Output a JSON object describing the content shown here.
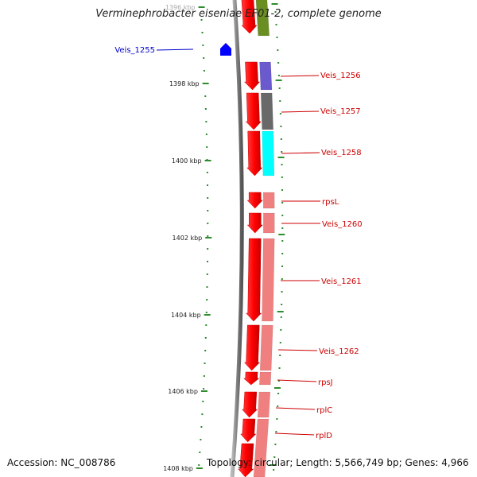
{
  "title": "Verminephrobacter eiseniae EF01-2, complete genome",
  "footer": {
    "accession": "Accession: NC_008786",
    "topology": "Topology: circular; Length: 5,566,749 bp; Genes: 4,966"
  },
  "colors": {
    "forward_gene": "#ff0000",
    "forward_gene_light": "#f08080",
    "reverse_gene": "#0000ff",
    "backbone": "#808080",
    "tick": "#2e8b2e",
    "label_red": "#cc0000",
    "label_blue": "#0000cc"
  },
  "scale_labels": [
    "1396 kbp",
    "1398 kbp",
    "1400 kbp",
    "1402 kbp",
    "1404 kbp",
    "1406 kbp",
    "1408 kbp"
  ],
  "gene_labels": [
    {
      "text": "Veis_1255",
      "strand": "reverse"
    },
    {
      "text": "Veis_1256",
      "strand": "forward"
    },
    {
      "text": "Veis_1257",
      "strand": "forward"
    },
    {
      "text": "Veis_1258",
      "strand": "forward"
    },
    {
      "text": "rpsL",
      "strand": "forward"
    },
    {
      "text": "Veis_1260",
      "strand": "forward"
    },
    {
      "text": "Veis_1261",
      "strand": "forward"
    },
    {
      "text": "Veis_1262",
      "strand": "forward"
    },
    {
      "text": "rpsJ",
      "strand": "forward"
    },
    {
      "text": "rplC",
      "strand": "forward"
    },
    {
      "text": "rplD",
      "strand": "forward"
    }
  ],
  "cog_colors": [
    "#6b8e23",
    "#6a5acd",
    "#696969",
    "#00ffff",
    "#f08080",
    "#f08080",
    "#f08080",
    "#f08080",
    "#f08080",
    "#f08080",
    "#f08080"
  ]
}
